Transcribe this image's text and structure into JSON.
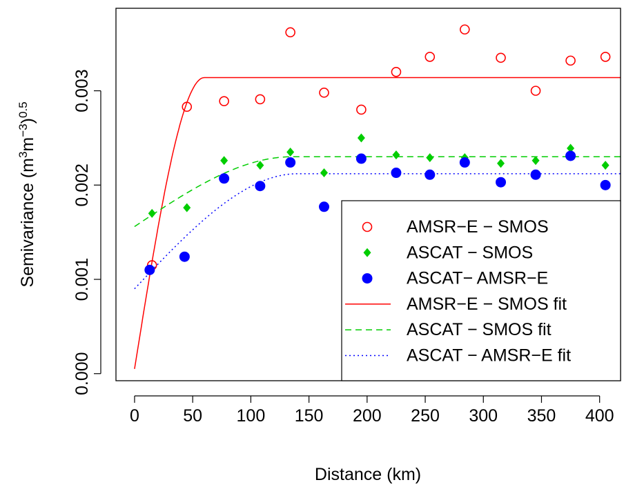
{
  "chart_data": {
    "type": "scatter",
    "title": "",
    "xlabel": "Distance (km)",
    "ylabel_parts": [
      "Semivariance (m",
      "3",
      "m",
      "−3",
      ")",
      "0.5"
    ],
    "xlim": [
      -16,
      418
    ],
    "ylim": [
      -7.5e-05,
      0.003875
    ],
    "x_ticks": [
      0,
      50,
      100,
      150,
      200,
      250,
      300,
      350,
      400
    ],
    "x_tick_labels": [
      "0",
      "50",
      "100",
      "150",
      "200",
      "250",
      "300",
      "350",
      "400"
    ],
    "y_ticks": [
      0,
      0.001,
      0.002,
      0.003
    ],
    "y_tick_labels": [
      "0.000",
      "0.001",
      "0.002",
      "0.003"
    ],
    "grid": false,
    "legend_position": "bottom-right",
    "series": [
      {
        "name": "AMSR−E − SMOS",
        "marker": "open-circle",
        "color": "#ff0000",
        "x": [
          15,
          45,
          77,
          108,
          134,
          163,
          195,
          225,
          254,
          284,
          315,
          345,
          375,
          405
        ],
        "y": [
          0.00115,
          0.00283,
          0.00289,
          0.00291,
          0.00362,
          0.00298,
          0.0028,
          0.0032,
          0.00336,
          0.00365,
          0.00335,
          0.003,
          0.00332,
          0.00336
        ]
      },
      {
        "name": "ASCAT − SMOS",
        "marker": "diamond",
        "color": "#00cd00",
        "x": [
          15,
          45,
          77,
          108,
          134,
          163,
          195,
          225,
          254,
          284,
          315,
          345,
          375,
          405
        ],
        "y": [
          0.0017,
          0.00176,
          0.00226,
          0.00221,
          0.00235,
          0.00213,
          0.0025,
          0.00232,
          0.00229,
          0.00229,
          0.00223,
          0.00226,
          0.00239,
          0.00221
        ]
      },
      {
        "name": "ASCAT− AMSR−E",
        "marker": "filled-circle",
        "color": "#0000ff",
        "x": [
          13,
          43,
          77,
          108,
          134,
          163,
          195,
          225,
          254,
          284,
          315,
          345,
          375,
          405
        ],
        "y": [
          0.0011,
          0.00124,
          0.00207,
          0.00199,
          0.00224,
          0.00177,
          0.00228,
          0.00213,
          0.00211,
          0.00224,
          0.00203,
          0.00211,
          0.00231,
          0.002
        ]
      }
    ],
    "fits": [
      {
        "name": "AMSR−E − SMOS fit",
        "line_style": "solid",
        "color": "#ff0000",
        "nugget": 5e-05,
        "sill": 0.00314,
        "range": 60,
        "x_range": [
          0,
          418
        ]
      },
      {
        "name": "ASCAT − SMOS fit",
        "line_style": "dashed",
        "color": "#00cd00",
        "nugget": 0.00156,
        "sill": 0.0023,
        "range": 135,
        "x_range": [
          0,
          418
        ]
      },
      {
        "name": "ASCAT − AMSR−E fit",
        "line_style": "dotted",
        "color": "#0000ff",
        "nugget": 0.0009,
        "sill": 0.00212,
        "range": 140,
        "x_range": [
          0,
          418
        ]
      }
    ]
  }
}
